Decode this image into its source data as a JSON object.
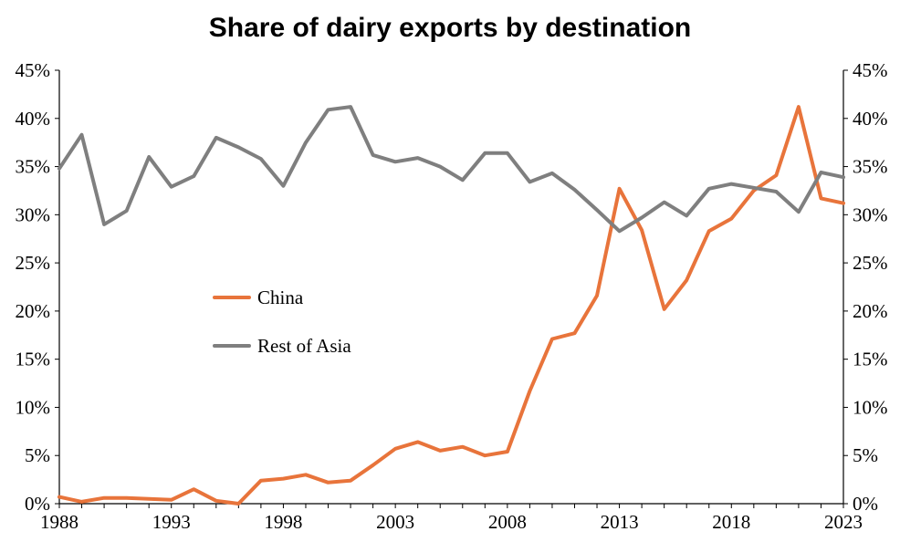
{
  "chart_data": {
    "type": "line",
    "title": "Share of dairy exports by destination",
    "xlabel": "",
    "ylabel": "",
    "x": [
      1988,
      1989,
      1990,
      1991,
      1992,
      1993,
      1994,
      1995,
      1996,
      1997,
      1998,
      1999,
      2000,
      2001,
      2002,
      2003,
      2004,
      2005,
      2006,
      2007,
      2008,
      2009,
      2010,
      2011,
      2012,
      2013,
      2014,
      2015,
      2016,
      2017,
      2018,
      2019,
      2020,
      2021,
      2022,
      2023
    ],
    "x_ticks": [
      "1988",
      "1993",
      "1998",
      "2003",
      "2008",
      "2013",
      "2018",
      "2023"
    ],
    "x_tick_values": [
      1988,
      1993,
      1998,
      2003,
      2008,
      2013,
      2018,
      2023
    ],
    "xlim": [
      1988,
      2023
    ],
    "ylim": [
      0,
      45
    ],
    "y_ticks": [
      "0%",
      "5%",
      "10%",
      "15%",
      "20%",
      "25%",
      "30%",
      "35%",
      "40%",
      "45%"
    ],
    "y_tick_values": [
      0,
      5,
      10,
      15,
      20,
      25,
      30,
      35,
      40,
      45
    ],
    "grid": false,
    "legend_position": "inside-left-middle",
    "series": [
      {
        "name": "China",
        "color": "#E8743B",
        "values": [
          0.7,
          0.2,
          0.6,
          0.6,
          0.5,
          0.4,
          1.5,
          0.3,
          0.0,
          2.4,
          2.6,
          3.0,
          2.2,
          2.4,
          4.0,
          5.7,
          6.4,
          5.5,
          5.9,
          5.0,
          5.4,
          11.7,
          17.1,
          17.7,
          21.6,
          32.7,
          28.4,
          20.2,
          23.2,
          28.3,
          29.6,
          32.5,
          34.1,
          41.2,
          31.7,
          31.2
        ]
      },
      {
        "name": "Rest of Asia",
        "color": "#7F7F7F",
        "values": [
          34.8,
          38.3,
          29.0,
          30.4,
          36.0,
          32.9,
          34.0,
          38.0,
          37.0,
          35.8,
          33.0,
          37.5,
          40.9,
          41.2,
          36.2,
          35.5,
          35.9,
          35.0,
          33.6,
          36.4,
          36.4,
          33.4,
          34.3,
          32.6,
          30.5,
          28.3,
          29.7,
          31.3,
          29.9,
          32.7,
          33.2,
          32.8,
          32.4,
          30.3,
          34.4,
          33.9
        ]
      }
    ]
  }
}
